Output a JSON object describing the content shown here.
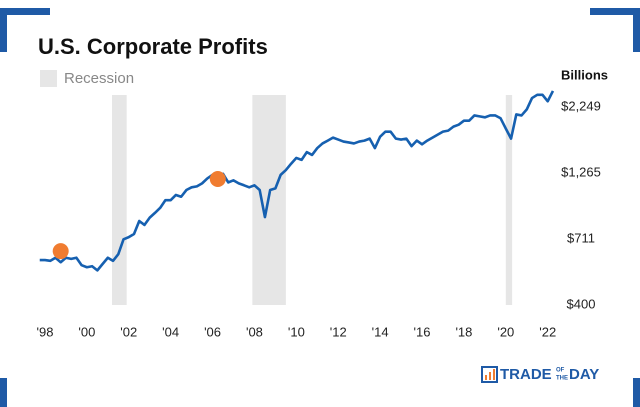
{
  "chart_data": {
    "type": "line",
    "title": "U.S. Corporate Profits",
    "y_axis_label": "Billions",
    "log_scale": true,
    "grid": false,
    "xlim": [
      1997.6,
      2022.3
    ],
    "ylim": [
      383,
      2800
    ],
    "xticks": [
      {
        "value": 1998,
        "label": "'98"
      },
      {
        "value": 2000,
        "label": "'00"
      },
      {
        "value": 2002,
        "label": "'02"
      },
      {
        "value": 2004,
        "label": "'04"
      },
      {
        "value": 2006,
        "label": "'06"
      },
      {
        "value": 2008,
        "label": "'08"
      },
      {
        "value": 2010,
        "label": "'10"
      },
      {
        "value": 2012,
        "label": "'12"
      },
      {
        "value": 2014,
        "label": "'14"
      },
      {
        "value": 2016,
        "label": "'16"
      },
      {
        "value": 2018,
        "label": "'18"
      },
      {
        "value": 2020,
        "label": "'20"
      },
      {
        "value": 2022,
        "label": "'22"
      }
    ],
    "yticks": [
      {
        "value": 400,
        "label": "$400"
      },
      {
        "value": 711,
        "label": "$711"
      },
      {
        "value": 1265,
        "label": "$1,265"
      },
      {
        "value": 2249,
        "label": "$2,249"
      }
    ],
    "recession_label": "Recession",
    "recession_color": "#e6e6e6",
    "recessions": [
      [
        2001.2,
        2001.9
      ],
      [
        2007.9,
        2009.5
      ],
      [
        2020.0,
        2020.3
      ]
    ],
    "x": [
      1997.75,
      1998.0,
      1998.25,
      1998.5,
      1998.75,
      1999.0,
      1999.25,
      1999.5,
      1999.75,
      2000.0,
      2000.25,
      2000.5,
      2000.75,
      2001.0,
      2001.25,
      2001.5,
      2001.75,
      2002.0,
      2002.25,
      2002.5,
      2002.75,
      2003.0,
      2003.25,
      2003.5,
      2003.75,
      2004.0,
      2004.25,
      2004.5,
      2004.75,
      2005.0,
      2005.25,
      2005.5,
      2005.75,
      2006.0,
      2006.25,
      2006.5,
      2006.75,
      2007.0,
      2007.25,
      2007.5,
      2007.75,
      2008.0,
      2008.25,
      2008.5,
      2008.75,
      2009.0,
      2009.25,
      2009.5,
      2009.75,
      2010.0,
      2010.25,
      2010.5,
      2010.75,
      2011.0,
      2011.25,
      2011.5,
      2011.75,
      2012.0,
      2012.25,
      2012.5,
      2012.75,
      2013.0,
      2013.25,
      2013.5,
      2013.75,
      2014.0,
      2014.25,
      2014.5,
      2014.75,
      2015.0,
      2015.25,
      2015.5,
      2015.75,
      2016.0,
      2016.25,
      2016.5,
      2016.75,
      2017.0,
      2017.25,
      2017.5,
      2017.75,
      2018.0,
      2018.25,
      2018.5,
      2018.75,
      2019.0,
      2019.25,
      2019.5,
      2019.75,
      2020.0,
      2020.25,
      2020.5,
      2020.75,
      2021.0,
      2021.25,
      2021.5,
      2021.75,
      2022.0,
      2022.25
    ],
    "series": [
      {
        "name": "Corporate Profits",
        "color": "#1660b0",
        "values": [
          592,
          592,
          588,
          604,
          581,
          604,
          598,
          604,
          566,
          556,
          561,
          541,
          572,
          604,
          588,
          623,
          709,
          723,
          743,
          832,
          804,
          857,
          893,
          933,
          998,
          998,
          1044,
          1028,
          1090,
          1116,
          1125,
          1155,
          1206,
          1244,
          1224,
          1255,
          1165,
          1186,
          1155,
          1136,
          1116,
          1136,
          1090,
          861,
          1090,
          1106,
          1244,
          1297,
          1371,
          1442,
          1418,
          1517,
          1480,
          1571,
          1636,
          1677,
          1721,
          1692,
          1663,
          1650,
          1636,
          1663,
          1677,
          1706,
          1571,
          1736,
          1813,
          1813,
          1706,
          1692,
          1706,
          1598,
          1677,
          1624,
          1677,
          1721,
          1766,
          1813,
          1829,
          1894,
          1927,
          1995,
          1995,
          2088,
          2071,
          2054,
          2088,
          2088,
          2037,
          1862,
          1706,
          2107,
          2088,
          2201,
          2430,
          2500,
          2500,
          2363,
          2586
        ]
      }
    ],
    "highlights": {
      "color": "#f07c30",
      "x": [
        1998.75,
        2006.25
      ],
      "values": [
        640,
        1200
      ]
    }
  },
  "logo": {
    "parts": [
      "TRADE",
      "OF",
      "THE",
      "DAY"
    ]
  }
}
